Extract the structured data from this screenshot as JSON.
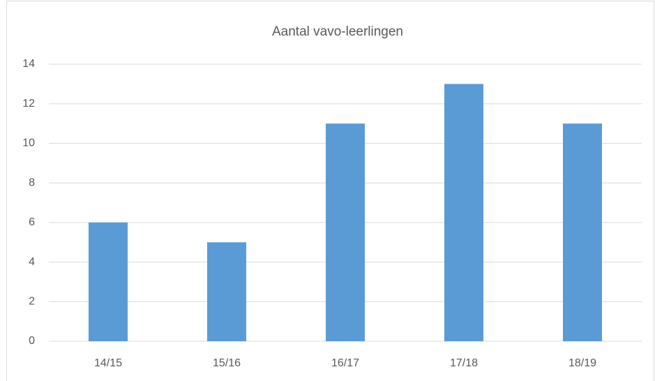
{
  "chart_data": {
    "type": "bar",
    "title": "Aantal vavo-leerlingen",
    "categories": [
      "14/15",
      "15/16",
      "16/17",
      "17/18",
      "18/19"
    ],
    "values": [
      6,
      5,
      11,
      13,
      11
    ],
    "color": "#5b9bd5",
    "ylim": [
      0,
      14
    ],
    "yticks": [
      0,
      2,
      4,
      6,
      8,
      10,
      12,
      14
    ],
    "grid": true
  }
}
